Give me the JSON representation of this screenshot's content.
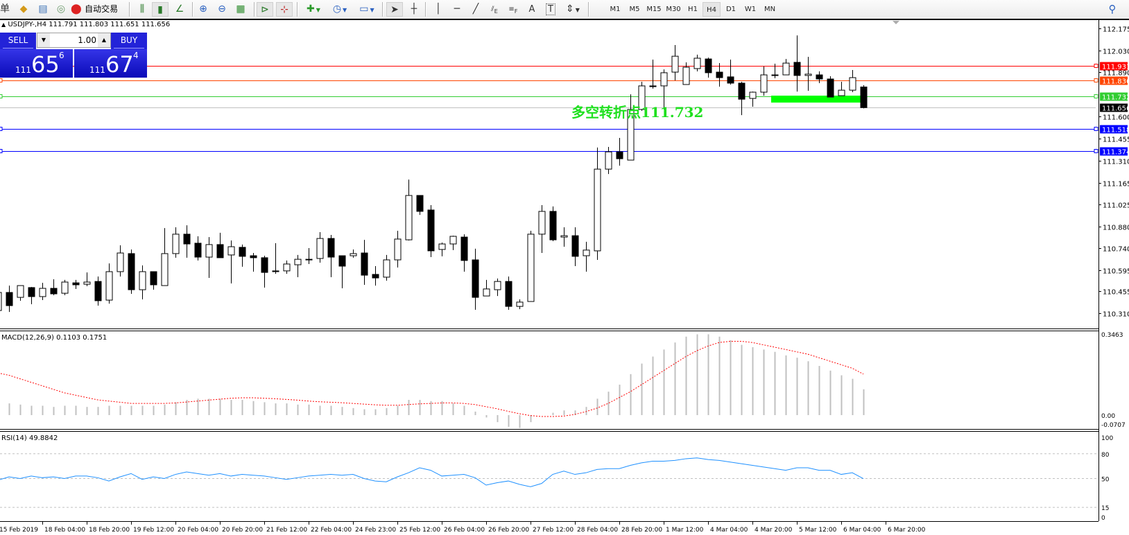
{
  "toolbar": {
    "new_order_label": "单",
    "auto_trade_label": "自动交易",
    "timeframes": [
      "M1",
      "M5",
      "M15",
      "M30",
      "H1",
      "H4",
      "D1",
      "W1",
      "MN"
    ],
    "active_timeframe": "H4",
    "tools": {
      "fibo_label": "E",
      "fibo_fan_label": "F",
      "text_label": "A",
      "text_label_tool": "T"
    }
  },
  "chart": {
    "symbol_line": "USDJPY-,H4  111.791 111.803 111.651 111.656",
    "pivot_text": "多空转折点111.732"
  },
  "trade_panel": {
    "sell_label": "SELL",
    "buy_label": "BUY",
    "lot": "1.00",
    "sell_price": {
      "prefix": "111",
      "big": "65",
      "sup": "6"
    },
    "buy_price": {
      "prefix": "111",
      "big": "67",
      "sup": "4"
    },
    "color": "#2323d8"
  },
  "price_axis": {
    "ticks": [
      "112.175",
      "112.030",
      "111.890",
      "111.600",
      "111.455",
      "111.310",
      "111.165",
      "111.025",
      "110.880",
      "110.740",
      "110.595",
      "110.455",
      "110.310"
    ]
  },
  "levels": [
    {
      "price": "111.931",
      "color": "#ff0000",
      "label_bg": "#ff0000"
    },
    {
      "price": "111.836",
      "color": "#ff4500",
      "label_bg": "#ff4500"
    },
    {
      "price": "111.732",
      "color": "#32cd32",
      "label_bg": "#32cd32"
    },
    {
      "price": "111.656",
      "color": "#c0c0c0",
      "label_bg": "#000000"
    },
    {
      "price": "111.518",
      "color": "#0000ff",
      "label_bg": "#0000ff"
    },
    {
      "price": "111.374",
      "color": "#0000ff",
      "label_bg": "#0000ff"
    }
  ],
  "pivot_zone": {
    "price": 111.732,
    "color": "#00ff00"
  },
  "time_axis": [
    "15 Feb 2019",
    "18 Feb 04:00",
    "18 Feb 20:00",
    "19 Feb 12:00",
    "20 Feb 04:00",
    "20 Feb 20:00",
    "21 Feb 12:00",
    "22 Feb 04:00",
    "24 Feb 23:00",
    "25 Feb 12:00",
    "26 Feb 04:00",
    "26 Feb 20:00",
    "27 Feb 12:00",
    "28 Feb 04:00",
    "28 Feb 20:00",
    "1 Mar 12:00",
    "4 Mar 04:00",
    "4 Mar 20:00",
    "5 Mar 12:00",
    "6 Mar 04:00",
    "6 Mar 20:00"
  ],
  "macd": {
    "label": "MACD(12,26,9) 0.1103 0.1751",
    "axis": [
      "0.3463",
      "0.00",
      "-0.0707"
    ],
    "histogram": [
      0.05,
      0.05,
      0.045,
      0.04,
      0.04,
      0.035,
      0.04,
      0.04,
      0.035,
      0.035,
      0.04,
      0.04,
      0.04,
      0.04,
      0.04,
      0.045,
      0.055,
      0.065,
      0.07,
      0.07,
      0.07,
      0.065,
      0.065,
      0.06,
      0.055,
      0.05,
      0.05,
      0.045,
      0.045,
      0.04,
      0.04,
      0.035,
      0.03,
      0.025,
      0.025,
      0.03,
      0.04,
      0.065,
      0.065,
      0.06,
      0.06,
      0.05,
      0.04,
      0.015,
      -0.01,
      -0.03,
      -0.05,
      -0.055,
      -0.03,
      0.0,
      0.01,
      0.02,
      0.02,
      0.035,
      0.07,
      0.1,
      0.13,
      0.175,
      0.22,
      0.25,
      0.28,
      0.31,
      0.335,
      0.345,
      0.345,
      0.335,
      0.32,
      0.3,
      0.29,
      0.28,
      0.27,
      0.255,
      0.245,
      0.23,
      0.21,
      0.19,
      0.17,
      0.155,
      0.1103
    ],
    "signal": [
      0.18,
      0.17,
      0.155,
      0.14,
      0.125,
      0.11,
      0.095,
      0.085,
      0.075,
      0.065,
      0.06,
      0.055,
      0.05,
      0.05,
      0.05,
      0.05,
      0.052,
      0.056,
      0.06,
      0.064,
      0.068,
      0.072,
      0.074,
      0.074,
      0.072,
      0.07,
      0.067,
      0.064,
      0.06,
      0.057,
      0.055,
      0.053,
      0.05,
      0.047,
      0.044,
      0.042,
      0.042,
      0.045,
      0.048,
      0.05,
      0.052,
      0.052,
      0.05,
      0.045,
      0.036,
      0.027,
      0.016,
      0.006,
      -0.002,
      -0.006,
      -0.006,
      -0.004,
      0.003,
      0.015,
      0.03,
      0.05,
      0.075,
      0.1,
      0.13,
      0.16,
      0.19,
      0.22,
      0.25,
      0.275,
      0.295,
      0.31,
      0.315,
      0.315,
      0.31,
      0.3,
      0.29,
      0.28,
      0.27,
      0.26,
      0.245,
      0.23,
      0.215,
      0.2,
      0.1751
    ],
    "hist_color": "#c0c0c0",
    "signal_color": "#ff0000"
  },
  "rsi": {
    "label": "RSI(14) 49.8842",
    "axis": [
      "100",
      "80",
      "50",
      "15",
      "0"
    ],
    "levels": [
      80,
      50,
      15
    ],
    "values": [
      48,
      52,
      50,
      53,
      51,
      52,
      50,
      53,
      53,
      51,
      47,
      52,
      56,
      49,
      52,
      50,
      55,
      58,
      56,
      54,
      56,
      53,
      55,
      54,
      53,
      51,
      49,
      51,
      53,
      54,
      55,
      54,
      55,
      50,
      47,
      46,
      52,
      57,
      63,
      60,
      53,
      54,
      55,
      51,
      42,
      45,
      47,
      43,
      40,
      44,
      55,
      59,
      55,
      57,
      61,
      62,
      62,
      66,
      69,
      71,
      71,
      72,
      74,
      75,
      73,
      72,
      70,
      68,
      66,
      64,
      62,
      60,
      63,
      63,
      60,
      60,
      55,
      57,
      49.8842
    ],
    "color": "#1e90ff"
  },
  "chart_data": {
    "type": "candlestick",
    "symbol": "USDJPY-",
    "timeframe": "H4",
    "ylim": [
      110.31,
      112.175
    ],
    "ohlc": [
      [
        110.33,
        110.48,
        110.312,
        110.448
      ],
      [
        110.448,
        110.493,
        110.321,
        110.362
      ],
      [
        110.416,
        110.493,
        110.394,
        110.493
      ],
      [
        110.48,
        110.484,
        110.371,
        110.421
      ],
      [
        110.421,
        110.511,
        110.398,
        110.475
      ],
      [
        110.475,
        110.534,
        110.43,
        110.439
      ],
      [
        110.443,
        110.53,
        110.43,
        110.516
      ],
      [
        110.511,
        110.53,
        110.471,
        110.498
      ],
      [
        110.502,
        110.579,
        110.489,
        110.516
      ],
      [
        110.52,
        110.552,
        110.362,
        110.394
      ],
      [
        110.398,
        110.638,
        110.375,
        110.584
      ],
      [
        110.584,
        110.756,
        110.552,
        110.706
      ],
      [
        110.702,
        110.729,
        110.439,
        110.466
      ],
      [
        110.466,
        110.625,
        110.403,
        110.584
      ],
      [
        110.584,
        110.584,
        110.466,
        110.498
      ],
      [
        110.493,
        110.869,
        110.493,
        110.702
      ],
      [
        110.702,
        110.874,
        110.675,
        110.829
      ],
      [
        110.829,
        110.887,
        110.675,
        110.765
      ],
      [
        110.77,
        110.815,
        110.657,
        110.679
      ],
      [
        110.679,
        110.81,
        110.543,
        110.761
      ],
      [
        110.761,
        110.838,
        110.675,
        110.675
      ],
      [
        110.693,
        110.788,
        110.507,
        110.747
      ],
      [
        110.743,
        110.761,
        110.616,
        110.684
      ],
      [
        110.688,
        110.706,
        110.584,
        110.675
      ],
      [
        110.675,
        110.688,
        110.48,
        110.579
      ],
      [
        110.589,
        110.77,
        110.57,
        110.584
      ],
      [
        110.589,
        110.657,
        110.57,
        110.634
      ],
      [
        110.629,
        110.693,
        110.548,
        110.665
      ],
      [
        110.665,
        110.738,
        110.634,
        110.663
      ],
      [
        110.67,
        110.842,
        110.643,
        110.801
      ],
      [
        110.801,
        110.824,
        110.548,
        110.679
      ],
      [
        110.688,
        110.688,
        110.475,
        110.62
      ],
      [
        110.688,
        110.729,
        110.675,
        110.702
      ],
      [
        110.706,
        110.792,
        110.498,
        110.561
      ],
      [
        110.566,
        110.62,
        110.493,
        110.543
      ],
      [
        110.548,
        110.693,
        110.525,
        110.661
      ],
      [
        110.661,
        110.851,
        110.611,
        110.797
      ],
      [
        110.792,
        111.186,
        110.788,
        111.082
      ],
      [
        111.082,
        111.082,
        110.955,
        110.978
      ],
      [
        110.987,
        111.019,
        110.679,
        110.72
      ],
      [
        110.729,
        110.774,
        110.684,
        110.765
      ],
      [
        110.765,
        110.819,
        110.725,
        110.815
      ],
      [
        110.81,
        110.828,
        110.584,
        110.657
      ],
      [
        110.661,
        110.734,
        110.335,
        110.416
      ],
      [
        110.425,
        110.53,
        110.425,
        110.471
      ],
      [
        110.466,
        110.539,
        110.425,
        110.52
      ],
      [
        110.52,
        110.552,
        110.335,
        110.357
      ],
      [
        110.357,
        110.403,
        110.339,
        110.385
      ],
      [
        110.389,
        110.851,
        110.389,
        110.829
      ],
      [
        110.829,
        111.019,
        110.706,
        110.978
      ],
      [
        110.978,
        111.01,
        110.783,
        110.792
      ],
      [
        110.81,
        110.874,
        110.747,
        110.819
      ],
      [
        110.819,
        110.874,
        110.62,
        110.684
      ],
      [
        110.688,
        110.779,
        110.584,
        110.725
      ],
      [
        110.72,
        111.395,
        110.661,
        111.254
      ],
      [
        111.254,
        111.399,
        111.222,
        111.367
      ],
      [
        111.367,
        111.458,
        111.277,
        111.322
      ],
      [
        111.313,
        111.743,
        111.313,
        111.644
      ],
      [
        111.644,
        111.825,
        111.635,
        111.798
      ],
      [
        111.798,
        111.97,
        111.78,
        111.793
      ],
      [
        111.798,
        111.906,
        111.644,
        111.884
      ],
      [
        111.888,
        112.065,
        111.834,
        111.992
      ],
      [
        111.807,
        111.952,
        111.807,
        111.92
      ],
      [
        111.911,
        112.002,
        111.893,
        111.979
      ],
      [
        111.974,
        111.983,
        111.852,
        111.884
      ],
      [
        111.888,
        111.947,
        111.793,
        111.852
      ],
      [
        111.857,
        111.97,
        111.807,
        111.816
      ],
      [
        111.816,
        111.825,
        111.607,
        111.711
      ],
      [
        111.716,
        111.761,
        111.662,
        111.757
      ],
      [
        111.757,
        111.925,
        111.734,
        111.87
      ],
      [
        111.866,
        111.943,
        111.848,
        111.87
      ],
      [
        111.87,
        111.974,
        111.87,
        111.947
      ],
      [
        111.952,
        112.128,
        111.761,
        111.866
      ],
      [
        111.866,
        111.988,
        111.766,
        111.875
      ],
      [
        111.87,
        111.893,
        111.816,
        111.843
      ],
      [
        111.843,
        111.861,
        111.725,
        111.725
      ],
      [
        111.734,
        111.825,
        111.734,
        111.77
      ],
      [
        111.77,
        111.902,
        111.757,
        111.852
      ],
      [
        111.791,
        111.803,
        111.651,
        111.656
      ]
    ]
  }
}
